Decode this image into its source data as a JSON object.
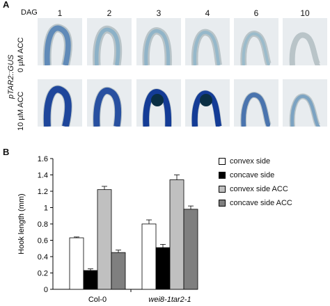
{
  "panel_a": {
    "letter": "A",
    "dag_label": "DAG",
    "columns": [
      "1",
      "2",
      "3",
      "4",
      "6",
      "10"
    ],
    "row_title": "pTAR2::GUS",
    "row_labels": [
      "0 µM ACC",
      "10 µM ACC"
    ],
    "rows": [
      {
        "stain": [
          0.55,
          0.2,
          0.15,
          0.1,
          0.05,
          0.0
        ]
      },
      {
        "stain": [
          0.95,
          0.9,
          1.0,
          1.0,
          0.7,
          0.35
        ]
      }
    ]
  },
  "panel_b": {
    "letter": "B"
  },
  "chart_data": {
    "type": "bar",
    "title": "",
    "ylabel": "Hook length (mm)",
    "xlabel": "",
    "ylim": [
      0,
      1.6
    ],
    "yticks": [
      "0",
      "0.2",
      "0.4",
      "0.6",
      "0.8",
      "1",
      "1.2",
      "1.4",
      "1.6"
    ],
    "categories": [
      "Col-0",
      "wei8-1tar2-1"
    ],
    "series": [
      {
        "name": "convex side",
        "color": "#ffffff",
        "values": [
          0.63,
          0.8
        ],
        "errors": [
          0.01,
          0.05
        ]
      },
      {
        "name": "concave side",
        "color": "#000000",
        "values": [
          0.23,
          0.51
        ],
        "errors": [
          0.02,
          0.04
        ]
      },
      {
        "name": "convex side ACC",
        "color": "#c0c0c0",
        "values": [
          1.22,
          1.34
        ],
        "errors": [
          0.04,
          0.06
        ]
      },
      {
        "name": "concave side ACC",
        "color": "#7f7f7f",
        "values": [
          0.45,
          0.98
        ],
        "errors": [
          0.03,
          0.04
        ]
      }
    ],
    "legend": "right"
  }
}
